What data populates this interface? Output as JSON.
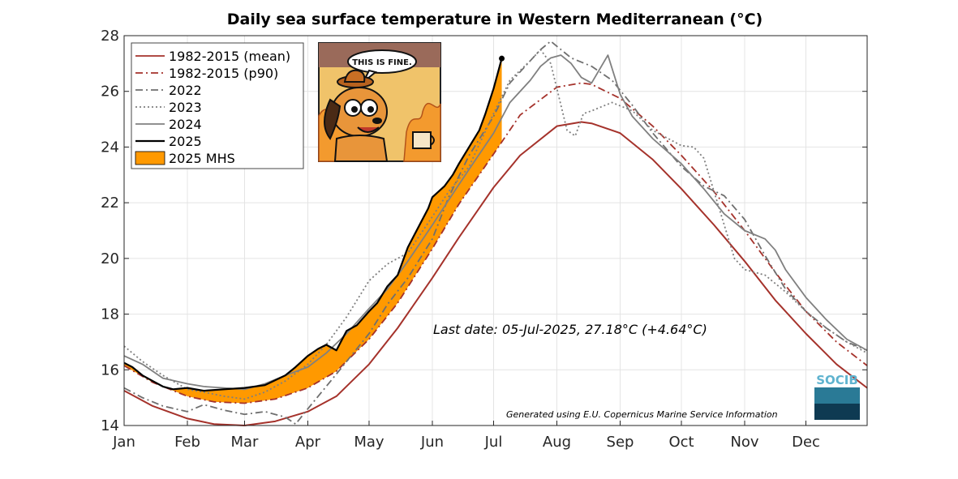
{
  "chart_data": {
    "type": "line",
    "title": "Daily sea surface temperature in Western Mediterranean (°C)",
    "xlabel": "",
    "ylabel": "",
    "x_unit": "day of year",
    "xlim": [
      1,
      365
    ],
    "ylim": [
      14,
      28
    ],
    "y_ticks": [
      14,
      16,
      18,
      20,
      22,
      24,
      26,
      28
    ],
    "month_ticks": [
      {
        "label": "Jan",
        "day": 1
      },
      {
        "label": "Feb",
        "day": 32
      },
      {
        "label": "Mar",
        "day": 60
      },
      {
        "label": "Apr",
        "day": 91
      },
      {
        "label": "May",
        "day": 121
      },
      {
        "label": "Jun",
        "day": 152
      },
      {
        "label": "Jul",
        "day": 182
      },
      {
        "label": "Aug",
        "day": 213
      },
      {
        "label": "Sep",
        "day": 244
      },
      {
        "label": "Oct",
        "day": 274
      },
      {
        "label": "Nov",
        "day": 305
      },
      {
        "label": "Dec",
        "day": 335
      }
    ],
    "grid": true,
    "legend_position": "top-left",
    "series": [
      {
        "name": "1982-2015 (mean)",
        "color": "#a5322b",
        "style": "solid",
        "x": [
          1,
          15,
          32,
          45,
          60,
          75,
          91,
          105,
          121,
          135,
          152,
          165,
          182,
          195,
          213,
          225,
          230,
          244,
          260,
          274,
          290,
          305,
          320,
          335,
          350,
          365
        ],
        "y": [
          15.25,
          14.7,
          14.25,
          14.05,
          14.0,
          14.15,
          14.5,
          15.05,
          16.2,
          17.5,
          19.3,
          20.75,
          22.55,
          23.7,
          24.75,
          24.9,
          24.85,
          24.5,
          23.55,
          22.5,
          21.2,
          19.9,
          18.5,
          17.3,
          16.2,
          15.35
        ]
      },
      {
        "name": "1982-2015 (p90)",
        "color": "#a5322b",
        "style": "dashdot",
        "x": [
          1,
          15,
          32,
          45,
          60,
          75,
          91,
          105,
          121,
          135,
          152,
          165,
          182,
          195,
          213,
          225,
          230,
          244,
          260,
          274,
          290,
          305,
          320,
          335,
          350,
          365
        ],
        "y": [
          16.15,
          15.55,
          15.05,
          14.85,
          14.8,
          14.95,
          15.35,
          15.95,
          17.1,
          18.4,
          20.35,
          21.95,
          23.75,
          25.15,
          26.15,
          26.3,
          26.25,
          25.75,
          24.75,
          23.7,
          22.4,
          21.0,
          19.5,
          18.1,
          17.0,
          16.15
        ]
      },
      {
        "name": "2022",
        "color": "#6f6f6f",
        "style": "dashdot",
        "x": [
          1,
          10,
          20,
          32,
          40,
          50,
          60,
          70,
          80,
          85,
          91,
          100,
          110,
          121,
          130,
          140,
          152,
          160,
          170,
          182,
          190,
          200,
          205,
          210,
          215,
          220,
          230,
          240,
          250,
          260,
          274,
          285,
          295,
          305,
          315,
          325,
          335,
          345,
          355,
          365
        ],
        "y": [
          15.35,
          15.0,
          14.7,
          14.5,
          14.75,
          14.55,
          14.4,
          14.5,
          14.3,
          14.05,
          14.6,
          15.4,
          16.3,
          17.3,
          18.35,
          19.3,
          20.7,
          22.2,
          23.7,
          25.1,
          26.3,
          27.1,
          27.5,
          27.8,
          27.5,
          27.2,
          26.9,
          26.4,
          25.5,
          24.5,
          23.3,
          22.6,
          22.25,
          21.4,
          20.1,
          18.9,
          18.1,
          17.5,
          17.0,
          16.7
        ]
      },
      {
        "name": "2023",
        "color": "#7f7f7f",
        "style": "dotted",
        "x": [
          1,
          10,
          20,
          32,
          40,
          50,
          60,
          70,
          80,
          91,
          100,
          110,
          121,
          130,
          140,
          152,
          160,
          170,
          175,
          182,
          190,
          200,
          205,
          210,
          215,
          218,
          222,
          226,
          230,
          240,
          250,
          260,
          274,
          280,
          285,
          290,
          300,
          305,
          315,
          325,
          335,
          345,
          355,
          365
        ],
        "y": [
          16.85,
          16.3,
          15.8,
          15.3,
          15.2,
          15.05,
          14.95,
          15.2,
          15.6,
          16.2,
          16.9,
          17.9,
          19.2,
          19.8,
          20.2,
          21.5,
          22.4,
          23.3,
          24.1,
          25.2,
          26.4,
          27.1,
          27.5,
          27.0,
          25.5,
          24.6,
          24.4,
          25.2,
          25.3,
          25.6,
          25.3,
          24.6,
          24.05,
          24.0,
          23.6,
          22.4,
          20.0,
          19.6,
          19.4,
          18.8,
          18.1,
          17.5,
          17.0,
          16.6
        ]
      },
      {
        "name": "2024",
        "color": "#808080",
        "style": "solid",
        "x": [
          1,
          10,
          20,
          32,
          40,
          50,
          60,
          70,
          80,
          91,
          100,
          110,
          121,
          130,
          140,
          152,
          160,
          170,
          182,
          190,
          200,
          205,
          210,
          215,
          220,
          225,
          230,
          238,
          244,
          250,
          260,
          274,
          285,
          295,
          305,
          315,
          320,
          325,
          335,
          345,
          355,
          365
        ],
        "y": [
          16.5,
          16.2,
          15.7,
          15.5,
          15.4,
          15.35,
          15.3,
          15.5,
          15.8,
          16.1,
          16.6,
          17.3,
          18.2,
          18.9,
          19.9,
          21.2,
          22.1,
          23.2,
          24.5,
          25.6,
          26.4,
          26.9,
          27.2,
          27.3,
          27.0,
          26.5,
          26.3,
          27.3,
          25.9,
          25.1,
          24.3,
          23.4,
          22.5,
          21.6,
          21.0,
          20.7,
          20.3,
          19.6,
          18.6,
          17.8,
          17.1,
          16.7
        ]
      },
      {
        "name": "2025",
        "color": "#000000",
        "style": "solid",
        "x": [
          1,
          5,
          10,
          15,
          20,
          25,
          32,
          40,
          50,
          60,
          70,
          80,
          85,
          91,
          96,
          100,
          105,
          110,
          115,
          121,
          125,
          130,
          135,
          140,
          145,
          150,
          152,
          155,
          158,
          162,
          165,
          170,
          175,
          178,
          182,
          186
        ],
        "y": [
          16.25,
          16.1,
          15.8,
          15.6,
          15.4,
          15.3,
          15.35,
          15.25,
          15.3,
          15.35,
          15.45,
          15.8,
          16.1,
          16.5,
          16.75,
          16.9,
          16.7,
          17.4,
          17.6,
          18.1,
          18.4,
          19.0,
          19.4,
          20.4,
          21.1,
          21.8,
          22.2,
          22.4,
          22.6,
          23.0,
          23.4,
          24.0,
          24.6,
          25.2,
          26.1,
          27.18
        ]
      }
    ],
    "mhs": {
      "name": "2025 MHS",
      "color": "#ff9900",
      "description": "2025 marine heat spike area between 2025 and p90"
    },
    "annotations": {
      "last_date": "Last date: 05-Jul-2025, 27.18°C (+4.64°C)",
      "credit": "Generated using E.U. Copernicus Marine Service Information",
      "meme_text": "THIS IS FINE.",
      "logo_text": "SOCIB"
    }
  }
}
